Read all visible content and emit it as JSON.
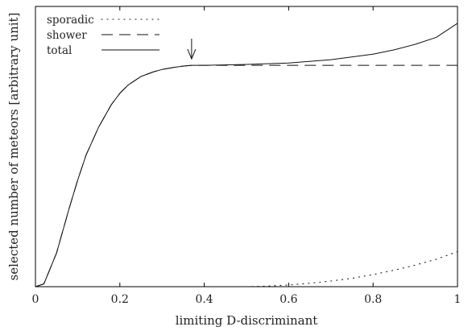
{
  "chart_data": {
    "type": "line",
    "title": "",
    "xlabel": "limiting D-discriminant",
    "ylabel": "selected number of meteors [arbitrary unit]",
    "xlim": [
      0,
      1
    ],
    "ylim": [
      0,
      100
    ],
    "xticks": [
      0,
      0.2,
      0.4,
      0.6,
      0.8,
      1
    ],
    "xtick_labels": [
      "0",
      "0.2",
      "0.4",
      "0.6",
      "0.8",
      "1"
    ],
    "y_tick_labels_shown": false,
    "grid": false,
    "legend_position": "top-left",
    "annotation": {
      "type": "arrow-down",
      "x": 0.37,
      "points_to_y": 79
    },
    "series": [
      {
        "name": "sporadic",
        "style": "dotted",
        "x": [
          0.5,
          0.55,
          0.6,
          0.65,
          0.7,
          0.75,
          0.8,
          0.85,
          0.9,
          0.95,
          1.0
        ],
        "y": [
          0,
          0.2,
          0.6,
          1.2,
          2.0,
          3.0,
          4.3,
          5.9,
          7.7,
          9.8,
          12.5
        ]
      },
      {
        "name": "shower",
        "style": "dashed",
        "x": [
          0.0,
          0.02,
          0.05,
          0.08,
          0.1,
          0.12,
          0.15,
          0.18,
          0.2,
          0.22,
          0.25,
          0.28,
          0.3,
          0.33,
          0.35,
          0.37,
          0.4,
          0.5,
          0.6,
          0.7,
          0.8,
          0.9,
          1.0
        ],
        "y": [
          0,
          1,
          12,
          28,
          38,
          47,
          57,
          65,
          69,
          72,
          75,
          76.7,
          77.5,
          78.3,
          78.7,
          79,
          79,
          79,
          79,
          79,
          79,
          79,
          79
        ]
      },
      {
        "name": "total",
        "style": "solid",
        "x": [
          0.0,
          0.02,
          0.05,
          0.08,
          0.1,
          0.12,
          0.15,
          0.18,
          0.2,
          0.22,
          0.25,
          0.28,
          0.3,
          0.33,
          0.35,
          0.37,
          0.4,
          0.5,
          0.6,
          0.7,
          0.8,
          0.85,
          0.9,
          0.95,
          1.0
        ],
        "y": [
          0,
          1,
          12,
          28,
          38,
          47,
          57,
          65,
          69,
          72,
          75,
          76.7,
          77.5,
          78.3,
          78.7,
          79,
          79,
          79.3,
          79.8,
          81,
          83,
          84.5,
          86.5,
          89,
          94
        ]
      }
    ]
  }
}
